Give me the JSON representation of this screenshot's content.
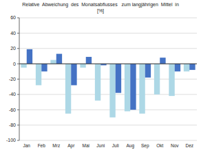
{
  "chart_data": {
    "type": "bar",
    "title": "Relative  Abweichung  des  Monatsabflusses   zum langjährigen  Mittel  in\n[%]",
    "categories": [
      "Jan",
      "Feb",
      "Mrz",
      "Apr",
      "Mai",
      "Juni",
      "Juli",
      "Aug",
      "Sep",
      "Okt",
      "Nov",
      "Dez"
    ],
    "series": [
      {
        "color": "#add8e6",
        "values": [
          -5,
          -28,
          5,
          -65,
          -5,
          -48,
          -70,
          -62,
          -65,
          -40,
          -42,
          -10
        ]
      },
      {
        "color": "#4472c4",
        "values": [
          19,
          -10,
          13,
          -28,
          9,
          -2,
          -38,
          -60,
          -18,
          8,
          -10,
          -8
        ]
      }
    ],
    "ylim": [
      -100,
      60
    ],
    "yticks": [
      -100,
      -80,
      -60,
      -40,
      -20,
      0,
      20,
      40,
      60
    ],
    "grid": true
  }
}
